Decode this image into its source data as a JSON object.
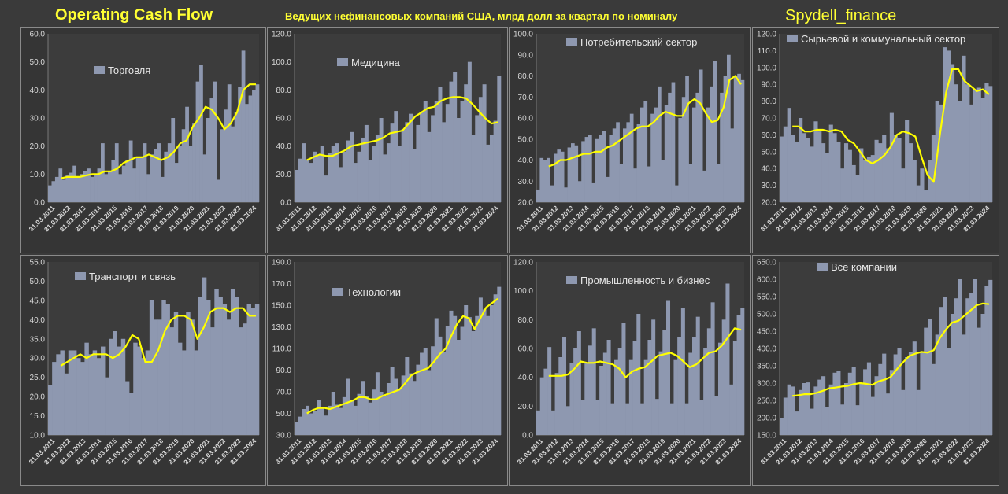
{
  "header": {
    "title": "Operating Cash Flow",
    "subtitle": "Ведущих нефинансовых компаний США, млрд долл за квартал по номиналу",
    "brand": "Spydell_finance"
  },
  "colors": {
    "bar": "#8e98b0",
    "line": "#ffff00",
    "background": "#3a3a3a",
    "plot": "#353535"
  },
  "x_tick_labels": [
    "31.03.2011",
    "31.03.2012",
    "31.03.2013",
    "31.03.2014",
    "31.03.2015",
    "31.03.2016",
    "31.03.2017",
    "31.03.2018",
    "31.03.2019",
    "31.03.2020",
    "31.03.2021",
    "31.03.2022",
    "31.03.2023",
    "31.03.2024"
  ],
  "chart_data": [
    {
      "type": "bar",
      "legend": "Торговля",
      "ylim": [
        0,
        60
      ],
      "yticks": [
        "0.0",
        "10.0",
        "20.0",
        "30.0",
        "40.0",
        "50.0",
        "60.0"
      ],
      "values": [
        6,
        7.5,
        9,
        12,
        8,
        9.5,
        10.5,
        13,
        9,
        10,
        11,
        12,
        9,
        10,
        12,
        21,
        10,
        11,
        15,
        21,
        10,
        13,
        15,
        22,
        12,
        16,
        16,
        21,
        10,
        17,
        19,
        21,
        9,
        18,
        21,
        30,
        14,
        20,
        26,
        34,
        20,
        28,
        43,
        49,
        17,
        30,
        37,
        43,
        8,
        26,
        33,
        42,
        27,
        32,
        41,
        54,
        35,
        38,
        40,
        42
      ],
      "line": [
        8.5,
        9,
        9,
        9,
        9.5,
        10,
        10,
        11,
        11,
        12,
        14,
        15,
        16,
        16,
        17,
        16,
        15,
        16,
        18,
        21,
        22,
        27,
        30,
        34,
        33,
        30,
        26,
        28,
        32,
        40,
        42,
        42
      ]
    },
    {
      "type": "bar",
      "legend": "Медицина",
      "ylim": [
        0,
        120
      ],
      "yticks": [
        "0.0",
        "20.0",
        "40.0",
        "60.0",
        "80.0",
        "100.0",
        "120.0"
      ],
      "values": [
        23,
        31,
        42,
        30,
        28,
        36,
        34,
        40,
        19,
        35,
        40,
        42,
        25,
        36,
        44,
        50,
        28,
        36,
        46,
        55,
        30,
        40,
        48,
        60,
        34,
        42,
        56,
        65,
        40,
        52,
        57,
        63,
        38,
        55,
        64,
        72,
        50,
        62,
        72,
        82,
        57,
        70,
        86,
        93,
        60,
        72,
        84,
        100,
        48,
        62,
        75,
        84,
        41,
        48,
        58,
        90
      ],
      "line": [
        30,
        32,
        34,
        33,
        33,
        35,
        37,
        40,
        41,
        42,
        43,
        44,
        46,
        49,
        50,
        51,
        56,
        61,
        64,
        67,
        68,
        72,
        74,
        75,
        75,
        74,
        70,
        65,
        60,
        56,
        57
      ]
    },
    {
      "type": "bar",
      "legend": "Потребительский сектор",
      "ylim": [
        20,
        100
      ],
      "yticks": [
        "20.0",
        "30.0",
        "40.0",
        "50.0",
        "60.0",
        "70.0",
        "80.0",
        "90.0",
        "100.0"
      ],
      "values": [
        26,
        41,
        40,
        41,
        28,
        43,
        45,
        44,
        27,
        46,
        48,
        47,
        30,
        49,
        51,
        52,
        29,
        50,
        52,
        54,
        32,
        52,
        55,
        58,
        38,
        55,
        58,
        62,
        36,
        57,
        65,
        68,
        37,
        62,
        65,
        75,
        40,
        66,
        72,
        77,
        28,
        60,
        70,
        80,
        38,
        65,
        72,
        83,
        35,
        65,
        75,
        87,
        38,
        72,
        80,
        90,
        55,
        80,
        81,
        78
      ],
      "line": [
        37,
        38,
        40,
        40,
        41,
        42,
        43,
        43,
        44,
        44,
        46,
        47,
        49,
        51,
        53,
        55,
        56,
        56,
        58,
        61,
        63,
        62,
        61,
        61,
        67,
        69,
        67,
        62,
        58,
        59,
        65,
        78,
        80,
        76
      ]
    },
    {
      "type": "bar",
      "legend": "Сырьевой и коммунальный сектор",
      "ylim": [
        20,
        120
      ],
      "yticks": [
        "20.0",
        "30.0",
        "40.0",
        "50.0",
        "60.0",
        "70.0",
        "80.0",
        "90.0",
        "100.0",
        "110.0",
        "120.0"
      ],
      "values": [
        59,
        65,
        76,
        60,
        56,
        70,
        61,
        58,
        53,
        68,
        62,
        55,
        49,
        66,
        61,
        56,
        40,
        55,
        51,
        42,
        36,
        52,
        45,
        47,
        48,
        57,
        55,
        60,
        52,
        73,
        60,
        58,
        40,
        69,
        55,
        45,
        30,
        40,
        27,
        45,
        60,
        80,
        78,
        112,
        110,
        102,
        90,
        80,
        107,
        90,
        78,
        87,
        88,
        82,
        91,
        89
      ],
      "line": [
        65,
        65,
        62,
        62,
        63,
        63,
        62,
        63,
        62,
        57,
        55,
        50,
        45,
        43,
        45,
        48,
        53,
        60,
        62,
        61,
        59,
        47,
        36,
        32,
        60,
        85,
        99,
        99,
        92,
        89,
        86,
        87,
        84
      ]
    },
    {
      "type": "bar",
      "legend": "Транспорт и связь",
      "ylim": [
        10,
        55
      ],
      "yticks": [
        "10.0",
        "15.0",
        "20.0",
        "25.0",
        "30.0",
        "35.0",
        "40.0",
        "45.0",
        "50.0",
        "55.0"
      ],
      "values": [
        23,
        29,
        31,
        32,
        26,
        32,
        32,
        30,
        29,
        34,
        31,
        32,
        30,
        33,
        25,
        35,
        37,
        33,
        35,
        24,
        21,
        34,
        33,
        30,
        32,
        45,
        40,
        40,
        45,
        44,
        38,
        42,
        34,
        32,
        42,
        40,
        32,
        46,
        51,
        45,
        38,
        48,
        46,
        44,
        40,
        48,
        46,
        38,
        39,
        44,
        43,
        44
      ],
      "line": [
        28,
        29,
        30,
        31,
        30,
        31,
        31,
        31,
        30,
        31,
        33,
        36,
        35,
        29,
        29,
        32,
        37,
        40,
        41,
        41,
        40,
        35,
        38,
        42,
        43,
        43,
        42,
        43,
        43,
        41,
        41
      ]
    },
    {
      "type": "bar",
      "legend": "Технологии",
      "ylim": [
        30,
        190
      ],
      "yticks": [
        "30.0",
        "50.0",
        "70.0",
        "90.0",
        "110.0",
        "130.0",
        "150.0",
        "170.0",
        "190.0"
      ],
      "values": [
        42,
        47,
        54,
        57,
        50,
        52,
        62,
        56,
        48,
        57,
        70,
        58,
        55,
        65,
        82,
        62,
        57,
        68,
        80,
        66,
        60,
        72,
        88,
        70,
        66,
        78,
        93,
        82,
        73,
        85,
        102,
        87,
        80,
        95,
        106,
        110,
        90,
        112,
        138,
        121,
        107,
        131,
        145,
        140,
        118,
        130,
        150,
        139,
        126,
        140,
        157,
        146,
        140,
        150,
        160,
        167
      ],
      "line": [
        50,
        53,
        55,
        55,
        54,
        56,
        58,
        60,
        62,
        65,
        65,
        63,
        63,
        66,
        68,
        70,
        72,
        78,
        85,
        88,
        90,
        92,
        98,
        105,
        110,
        122,
        133,
        140,
        138,
        128,
        138,
        148,
        152,
        156
      ]
    },
    {
      "type": "bar",
      "legend": "Промышленность и бизнес",
      "ylim": [
        0,
        120
      ],
      "yticks": [
        "0.0",
        "20.0",
        "40.0",
        "60.0",
        "80.0",
        "100.0",
        "120.0"
      ],
      "values": [
        17,
        40,
        46,
        61,
        17,
        43,
        54,
        68,
        20,
        50,
        60,
        72,
        24,
        50,
        62,
        74,
        24,
        48,
        57,
        66,
        22,
        52,
        60,
        78,
        22,
        52,
        65,
        84,
        22,
        52,
        66,
        80,
        25,
        58,
        73,
        93,
        22,
        52,
        68,
        88,
        22,
        57,
        68,
        82,
        24,
        60,
        74,
        92,
        27,
        64,
        80,
        105,
        35,
        65,
        83,
        88
      ],
      "line": [
        41,
        41,
        41,
        42,
        46,
        51,
        50,
        50,
        51,
        50,
        49,
        46,
        40,
        44,
        46,
        47,
        51,
        55,
        56,
        57,
        55,
        51,
        47,
        49,
        53,
        57,
        58,
        62,
        68,
        74,
        73
      ]
    },
    {
      "type": "bar",
      "legend": "Все компании",
      "ylim": [
        150,
        650
      ],
      "yticks": [
        "150.0",
        "200.0",
        "250.0",
        "300.0",
        "350.0",
        "400.0",
        "450.0",
        "500.0",
        "550.0",
        "600.0",
        "650.0"
      ],
      "values": [
        198,
        258,
        296,
        290,
        218,
        280,
        300,
        302,
        226,
        290,
        310,
        320,
        230,
        296,
        330,
        335,
        238,
        300,
        330,
        346,
        236,
        300,
        340,
        360,
        260,
        320,
        355,
        385,
        270,
        338,
        383,
        400,
        280,
        375,
        390,
        420,
        280,
        390,
        460,
        485,
        355,
        440,
        520,
        550,
        400,
        500,
        545,
        600,
        440,
        545,
        560,
        600,
        460,
        500,
        580,
        598
      ],
      "line": [
        263,
        265,
        268,
        268,
        272,
        278,
        285,
        287,
        290,
        292,
        297,
        300,
        298,
        295,
        305,
        310,
        318,
        340,
        360,
        378,
        385,
        390,
        388,
        395,
        430,
        455,
        475,
        480,
        495,
        510,
        525,
        530,
        528
      ]
    }
  ]
}
